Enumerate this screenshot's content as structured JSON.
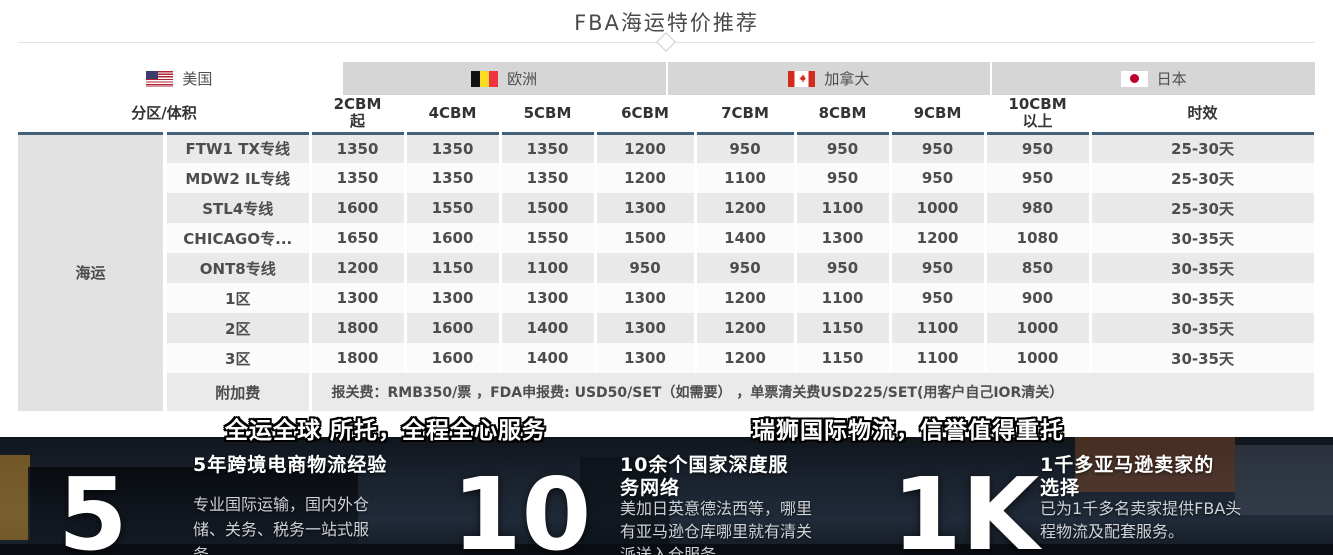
{
  "title": "FBA海运特价推荐",
  "tabs": [
    {
      "label": "美国",
      "flag": "us-flag-icon",
      "active": true
    },
    {
      "label": "欧洲",
      "flag": "belgium-flag-icon",
      "active": false
    },
    {
      "label": "加拿大",
      "flag": "canada-flag-icon",
      "active": false
    },
    {
      "label": "日本",
      "flag": "japan-flag-icon",
      "active": false
    }
  ],
  "table": {
    "row_group_label": "海运",
    "headers": [
      "分区/体积",
      "2CBM起",
      "4CBM",
      "5CBM",
      "6CBM",
      "7CBM",
      "8CBM",
      "9CBM",
      "10CBM以上",
      "时效"
    ],
    "rows": [
      {
        "zone": "FTW1 TX专线",
        "values": [
          "1350",
          "1350",
          "1350",
          "1200",
          "950",
          "950",
          "950",
          "950"
        ],
        "leadtime": "25-30天"
      },
      {
        "zone": "MDW2 IL专线",
        "values": [
          "1350",
          "1350",
          "1350",
          "1200",
          "1100",
          "950",
          "950",
          "950"
        ],
        "leadtime": "25-30天"
      },
      {
        "zone": "STL4专线",
        "values": [
          "1600",
          "1550",
          "1500",
          "1300",
          "1200",
          "1100",
          "1000",
          "980"
        ],
        "leadtime": "25-30天"
      },
      {
        "zone": "CHICAGO专...",
        "values": [
          "1650",
          "1600",
          "1550",
          "1500",
          "1400",
          "1300",
          "1200",
          "1080"
        ],
        "leadtime": "30-35天"
      },
      {
        "zone": "ONT8专线",
        "values": [
          "1200",
          "1150",
          "1100",
          "950",
          "950",
          "950",
          "950",
          "850"
        ],
        "leadtime": "30-35天"
      },
      {
        "zone": "1区",
        "values": [
          "1300",
          "1300",
          "1300",
          "1300",
          "1200",
          "1100",
          "950",
          "900"
        ],
        "leadtime": "30-35天"
      },
      {
        "zone": "2区",
        "values": [
          "1800",
          "1600",
          "1400",
          "1300",
          "1200",
          "1150",
          "1100",
          "1000"
        ],
        "leadtime": "30-35天"
      },
      {
        "zone": "3区",
        "values": [
          "1800",
          "1600",
          "1400",
          "1300",
          "1200",
          "1150",
          "1100",
          "1000"
        ],
        "leadtime": "30-35天"
      }
    ],
    "surcharge_label": "附加费",
    "surcharge_text": "报关费：RMB350/票 ，FDA申报费: USD50/SET（如需要） ，单票清关费USD225/SET(用客户自己IOR清关）"
  },
  "slogans": {
    "left": "全运全球 所托，全程全心服务",
    "right": "瑞狮国际物流，信誉值得重托"
  },
  "stats": [
    {
      "number": "5",
      "heading": "5年跨境电商物流经验",
      "body": "专业国际运输，国内外仓储、关务、税务一站式服务。"
    },
    {
      "number": "10",
      "heading": "10余个国家深度服务网络",
      "body": "美加日英意德法西等，哪里有亚马逊仓库哪里就有清关派送入仓服务。"
    },
    {
      "number": "1K",
      "heading": "1千多亚马逊卖家的选择",
      "body": "已为1千多名卖家提供FBA头程物流及配套服务。"
    }
  ],
  "colors": {
    "accent_border": "#456079",
    "tab_inactive_bg": "#d6d6d6",
    "row_odd_bg": "#e9e9e9",
    "footer_bg": "#1a222e"
  }
}
